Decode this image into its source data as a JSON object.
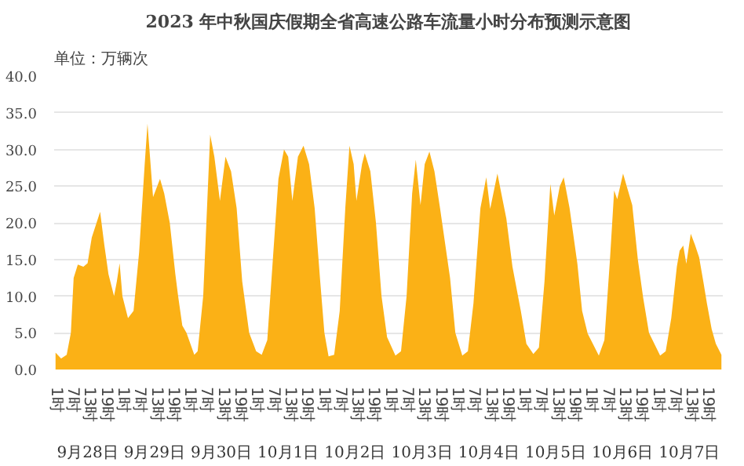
{
  "chart_data": {
    "type": "area",
    "title": "2023 年中秋国庆假期全省高速公路车流量小时分布预测示意图",
    "annotations": [
      "单位：万辆次"
    ],
    "xlim": [
      "2023-09-28T00:30",
      "2023-10-08T00:30"
    ],
    "ylim": [
      0,
      40
    ],
    "xticks": [
      {
        "value": "2023-09-28T01:00",
        "label": "1时"
      },
      {
        "value": "2023-09-28T07:00",
        "label": "7时"
      },
      {
        "value": "2023-09-28T13:00",
        "label": "13时"
      },
      {
        "value": "2023-09-28T19:00",
        "label": "19时"
      },
      {
        "value": "2023-09-29T01:00",
        "label": "1时"
      },
      {
        "value": "2023-09-29T07:00",
        "label": "7时"
      },
      {
        "value": "2023-09-29T13:00",
        "label": "13时"
      },
      {
        "value": "2023-09-29T19:00",
        "label": "19时"
      },
      {
        "value": "2023-09-30T01:00",
        "label": "1时"
      },
      {
        "value": "2023-09-30T07:00",
        "label": "7时"
      },
      {
        "value": "2023-09-30T13:00",
        "label": "13时"
      },
      {
        "value": "2023-09-30T19:00",
        "label": "19时"
      },
      {
        "value": "2023-10-01T01:00",
        "label": "1时"
      },
      {
        "value": "2023-10-01T07:00",
        "label": "7时"
      },
      {
        "value": "2023-10-01T13:00",
        "label": "13时"
      },
      {
        "value": "2023-10-01T19:00",
        "label": "19时"
      },
      {
        "value": "2023-10-02T01:00",
        "label": "1时"
      },
      {
        "value": "2023-10-02T07:00",
        "label": "7时"
      },
      {
        "value": "2023-10-02T13:00",
        "label": "13时"
      },
      {
        "value": "2023-10-02T19:00",
        "label": "19时"
      },
      {
        "value": "2023-10-03T01:00",
        "label": "1时"
      },
      {
        "value": "2023-10-03T07:00",
        "label": "7时"
      },
      {
        "value": "2023-10-03T13:00",
        "label": "13时"
      },
      {
        "value": "2023-10-03T19:00",
        "label": "19时"
      },
      {
        "value": "2023-10-04T01:00",
        "label": "1时"
      },
      {
        "value": "2023-10-04T07:00",
        "label": "7时"
      },
      {
        "value": "2023-10-04T13:00",
        "label": "13时"
      },
      {
        "value": "2023-10-04T19:00",
        "label": "19时"
      },
      {
        "value": "2023-10-05T01:00",
        "label": "1时"
      },
      {
        "value": "2023-10-05T07:00",
        "label": "7时"
      },
      {
        "value": "2023-10-05T13:00",
        "label": "13时"
      },
      {
        "value": "2023-10-05T19:00",
        "label": "19时"
      },
      {
        "value": "2023-10-06T01:00",
        "label": "1时"
      },
      {
        "value": "2023-10-06T07:00",
        "label": "7时"
      },
      {
        "value": "2023-10-06T13:00",
        "label": "13时"
      },
      {
        "value": "2023-10-06T19:00",
        "label": "19时"
      },
      {
        "value": "2023-10-07T01:00",
        "label": "1时"
      },
      {
        "value": "2023-10-07T07:00",
        "label": "7时"
      },
      {
        "value": "2023-10-07T13:00",
        "label": "13时"
      },
      {
        "value": "2023-10-07T19:00",
        "label": "19时"
      }
    ],
    "x2lim": [
      "2023-09-28T00:30",
      "2023-10-08T00:30"
    ],
    "x2ticks": [
      {
        "value": "2023-09-28T12:30",
        "label": "9月28日"
      },
      {
        "value": "2023-09-29T12:30",
        "label": "9月29日"
      },
      {
        "value": "2023-09-30T12:30",
        "label": "9月30日"
      },
      {
        "value": "2023-10-01T12:30",
        "label": "10月1日"
      },
      {
        "value": "2023-10-02T12:30",
        "label": "10月2日"
      },
      {
        "value": "2023-10-03T12:30",
        "label": "10月3日"
      },
      {
        "value": "2023-10-04T12:30",
        "label": "10月4日"
      },
      {
        "value": "2023-10-05T12:30",
        "label": "10月5日"
      },
      {
        "value": "2023-10-06T12:30",
        "label": "10月6日"
      },
      {
        "value": "2023-10-07T12:30",
        "label": "10月7日"
      }
    ],
    "yticks": [
      {
        "value": 0,
        "label": "0.0"
      },
      {
        "value": 5,
        "label": "5.0"
      },
      {
        "value": 10,
        "label": "10.0"
      },
      {
        "value": 15,
        "label": "15.0"
      },
      {
        "value": 20,
        "label": "20.0"
      },
      {
        "value": 25,
        "label": "25.0"
      },
      {
        "value": 30,
        "label": "30.0"
      },
      {
        "value": 35,
        "label": "35.0"
      },
      {
        "value": 40,
        "label": "40.0"
      }
    ],
    "grid": "y",
    "series": [
      {
        "color": "#fbb116",
        "x": [
          "2023-09-28T01:00",
          "2023-09-28T03:00",
          "2023-09-28T05:00",
          "2023-09-28T06:30",
          "2023-09-28T07:30",
          "2023-09-28T09:00",
          "2023-09-28T11:00",
          "2023-09-28T12:30",
          "2023-09-28T14:00",
          "2023-09-28T17:00",
          "2023-09-28T18:30",
          "2023-09-28T20:00",
          "2023-09-28T22:00",
          "2023-09-28T23:00",
          "2023-09-29T00:00",
          "2023-09-29T01:00",
          "2023-09-29T03:00",
          "2023-09-29T05:00",
          "2023-09-29T07:00",
          "2023-09-29T09:00",
          "2023-09-29T10:00",
          "2023-09-29T11:30",
          "2023-09-29T12:00",
          "2023-09-29T13:30",
          "2023-09-29T14:30",
          "2023-09-29T16:00",
          "2023-09-29T18:00",
          "2023-09-29T20:00",
          "2023-09-29T21:00",
          "2023-09-29T22:30",
          "2023-09-30T00:00",
          "2023-09-30T02:48",
          "2023-09-30T04:00",
          "2023-09-30T06:00",
          "2023-09-30T08:30",
          "2023-09-30T10:00",
          "2023-09-30T12:00",
          "2023-09-30T14:00",
          "2023-09-30T16:00",
          "2023-09-30T18:00",
          "2023-09-30T20:00",
          "2023-09-30T22:30",
          "2023-10-01T01:00",
          "2023-10-01T03:00",
          "2023-10-01T05:00",
          "2023-10-01T07:00",
          "2023-10-01T09:00",
          "2023-10-01T11:00",
          "2023-10-01T12:30",
          "2023-10-01T14:00",
          "2023-10-01T16:00",
          "2023-10-01T18:00",
          "2023-10-01T20:00",
          "2023-10-01T22:00",
          "2023-10-02T00:00",
          "2023-10-02T01:30",
          "2023-10-02T03:00",
          "2023-10-02T05:00",
          "2023-10-02T07:00",
          "2023-10-02T09:00",
          "2023-10-02T10:30",
          "2023-10-02T12:00",
          "2023-10-02T13:00",
          "2023-10-02T15:00",
          "2023-10-02T16:00",
          "2023-10-02T18:00",
          "2023-10-02T20:00",
          "2023-10-02T22:00",
          "2023-10-03T00:00",
          "2023-10-03T03:00",
          "2023-10-03T05:00",
          "2023-10-03T07:00",
          "2023-10-03T09:00",
          "2023-10-03T10:18",
          "2023-10-03T12:00",
          "2023-10-03T13:30",
          "2023-10-03T15:12",
          "2023-10-03T17:00",
          "2023-10-03T19:00",
          "2023-10-03T22:36",
          "2023-10-04T00:30",
          "2023-10-04T03:00",
          "2023-10-04T05:00",
          "2023-10-04T07:00",
          "2023-10-04T09:30",
          "2023-10-04T11:36",
          "2023-10-04T13:00",
          "2023-10-04T15:36",
          "2023-10-04T17:00",
          "2023-10-04T18:48",
          "2023-10-04T21:00",
          "2023-10-05T00:00",
          "2023-10-05T02:00",
          "2023-10-05T04:30",
          "2023-10-05T06:30",
          "2023-10-05T08:30",
          "2023-10-05T10:36",
          "2023-10-05T12:00",
          "2023-10-05T14:00",
          "2023-10-05T15:24",
          "2023-10-05T17:30",
          "2023-10-05T20:18",
          "2023-10-05T22:00",
          "2023-10-06T00:00",
          "2023-10-06T04:00",
          "2023-10-06T06:00",
          "2023-10-06T08:00",
          "2023-10-06T09:30",
          "2023-10-06T10:36",
          "2023-10-06T12:42",
          "2023-10-06T14:00",
          "2023-10-06T16:00",
          "2023-10-06T18:00",
          "2023-10-06T19:54",
          "2023-10-06T22:00",
          "2023-10-07T02:00",
          "2023-10-07T04:00",
          "2023-10-07T06:00",
          "2023-10-07T08:00",
          "2023-10-07T09:00",
          "2023-10-07T10:18",
          "2023-10-07T11:24",
          "2023-10-07T13:00",
          "2023-10-07T14:30",
          "2023-10-07T16:00",
          "2023-10-07T17:30",
          "2023-10-07T18:48",
          "2023-10-07T20:30",
          "2023-10-07T22:00",
          "2023-10-08T00:00"
        ],
        "values": [
          2.3,
          1.5,
          2,
          5,
          12.5,
          14.3,
          14,
          14.5,
          18,
          21.5,
          17,
          13,
          10,
          12,
          14.5,
          10,
          7,
          8,
          16,
          28,
          33.5,
          26,
          23.5,
          25,
          26,
          24,
          20,
          13,
          10,
          6,
          5,
          2,
          2.5,
          10,
          32,
          29,
          23,
          29,
          27,
          22,
          12,
          5,
          2.5,
          2,
          4,
          15,
          26,
          30,
          29,
          23,
          29,
          30.5,
          28,
          22,
          12,
          5,
          1.8,
          2,
          8,
          22,
          30.5,
          28,
          23,
          28,
          29.5,
          27,
          20,
          10,
          4.4,
          1.9,
          2.5,
          10,
          24,
          28.6,
          22.4,
          28,
          29.7,
          27,
          22,
          12.5,
          5,
          1.9,
          2.5,
          9,
          22,
          26.2,
          21.9,
          26.7,
          24,
          20.6,
          14,
          8,
          3.5,
          2.1,
          3,
          12,
          25.3,
          21,
          25,
          26.2,
          22,
          14.4,
          8,
          4.9,
          1.9,
          4,
          15,
          24.4,
          23.2,
          26.7,
          25,
          22.4,
          15,
          9.8,
          5,
          1.9,
          2.5,
          7,
          14,
          16.2,
          16.9,
          14.4,
          18.5,
          17,
          15.3,
          12,
          9,
          5.5,
          3.5,
          2
        ]
      }
    ]
  }
}
